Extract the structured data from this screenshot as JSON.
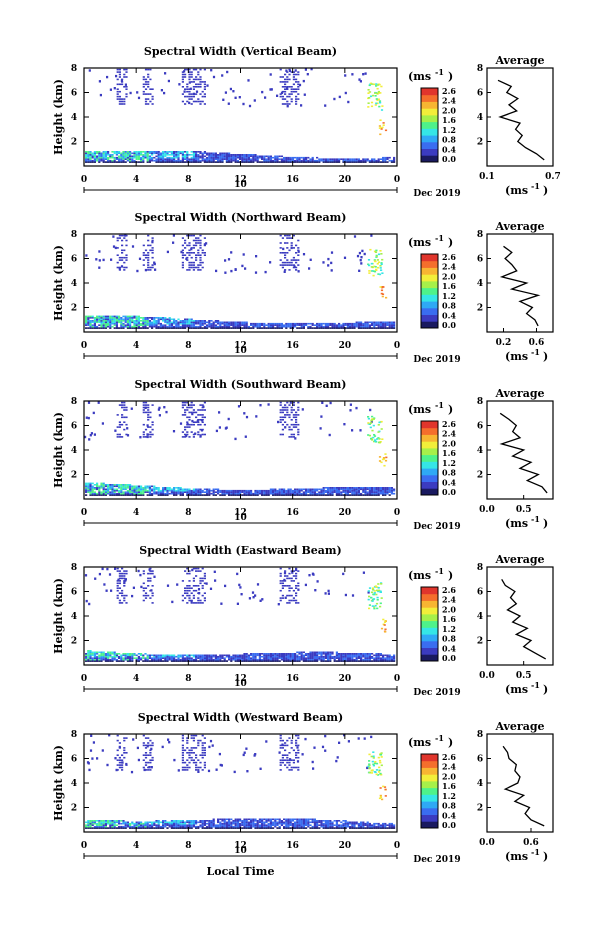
{
  "figure": {
    "xlabel": "Local Time",
    "date_label": "Dec 2019",
    "day_label": "10",
    "colorbar_unit": "(ms",
    "colorbar_unit_sup": "-1",
    "colorbar_unit_close": ")",
    "avg_title": "Average",
    "avg_unit": "(ms",
    "avg_unit_sup": "-1",
    "avg_unit_close": ")"
  },
  "colorbar_ticks": [
    "2.6",
    "2.4",
    "2.0",
    "1.6",
    "1.2",
    "0.8",
    "0.4",
    "0.0"
  ],
  "colormap": [
    "#1a1a60",
    "#3b3bc0",
    "#3a6df0",
    "#2fa9f5",
    "#35e6e6",
    "#4ef28a",
    "#a6f04a",
    "#f2ee3a",
    "#f7b532",
    "#f46e2c",
    "#e0352c"
  ],
  "chart_data": [
    {
      "type": "heatmap",
      "title": "Spectral Width (Vertical Beam)",
      "xlabel": "",
      "ylabel": "Height (km)",
      "xlim": [
        0,
        24
      ],
      "ylim": [
        0,
        8
      ],
      "xticks": [
        "0",
        "4",
        "8",
        "12",
        "16",
        "20",
        "0"
      ],
      "yticks": [
        "2",
        "4",
        "6",
        "8"
      ],
      "colorbar_range": [
        0.0,
        2.6
      ],
      "average_profile": {
        "title": "Average",
        "xticks": [
          "0.1",
          "0.7"
        ],
        "xlim": [
          0.1,
          0.7
        ],
        "yticks": [
          "2",
          "4",
          "6",
          "8"
        ],
        "heights": [
          0.5,
          1,
          1.5,
          2,
          2.5,
          3,
          3.5,
          4,
          4.5,
          5,
          5.5,
          6,
          6.5,
          7
        ],
        "values": [
          0.62,
          0.55,
          0.45,
          0.38,
          0.42,
          0.36,
          0.4,
          0.22,
          0.37,
          0.3,
          0.38,
          0.28,
          0.32,
          0.2
        ]
      }
    },
    {
      "type": "heatmap",
      "title": "Spectral Width (Northward Beam)",
      "xlabel": "",
      "ylabel": "Height (km)",
      "xlim": [
        0,
        24
      ],
      "ylim": [
        0,
        8
      ],
      "xticks": [
        "0",
        "4",
        "8",
        "12",
        "16",
        "20",
        "0"
      ],
      "yticks": [
        "2",
        "4",
        "6",
        "8"
      ],
      "colorbar_range": [
        0.0,
        2.6
      ],
      "average_profile": {
        "title": "Average",
        "xticks": [
          "0.2",
          "0.6"
        ],
        "xlim": [
          0.0,
          0.8
        ],
        "yticks": [
          "2",
          "4",
          "6",
          "8"
        ],
        "heights": [
          0.5,
          1,
          1.5,
          2,
          2.5,
          3,
          3.5,
          4,
          4.5,
          5,
          5.5,
          6,
          6.5,
          7
        ],
        "values": [
          0.62,
          0.58,
          0.48,
          0.55,
          0.4,
          0.62,
          0.3,
          0.48,
          0.18,
          0.36,
          0.3,
          0.22,
          0.3,
          0.2
        ]
      }
    },
    {
      "type": "heatmap",
      "title": "Spectral Width (Southward Beam)",
      "xlabel": "",
      "ylabel": "Height (km)",
      "xlim": [
        0,
        24
      ],
      "ylim": [
        0,
        8
      ],
      "xticks": [
        "0",
        "4",
        "8",
        "12",
        "16",
        "20",
        "0"
      ],
      "yticks": [
        "2",
        "4",
        "6",
        "8"
      ],
      "colorbar_range": [
        0.0,
        2.6
      ],
      "average_profile": {
        "title": "Average",
        "xticks": [
          "0.0",
          "0.5"
        ],
        "xlim": [
          0.0,
          0.9
        ],
        "yticks": [
          "2",
          "4",
          "6",
          "8"
        ],
        "heights": [
          0.5,
          1,
          1.5,
          2,
          2.5,
          3,
          3.5,
          4,
          4.5,
          5,
          5.5,
          6,
          6.5,
          7
        ],
        "values": [
          0.82,
          0.75,
          0.55,
          0.7,
          0.45,
          0.6,
          0.35,
          0.5,
          0.2,
          0.45,
          0.35,
          0.4,
          0.3,
          0.18
        ]
      }
    },
    {
      "type": "heatmap",
      "title": "Spectral Width (Eastward Beam)",
      "xlabel": "",
      "ylabel": "Height (km)",
      "xlim": [
        0,
        24
      ],
      "ylim": [
        0,
        8
      ],
      "xticks": [
        "0",
        "4",
        "8",
        "12",
        "16",
        "20",
        "0"
      ],
      "yticks": [
        "2",
        "4",
        "6",
        "8"
      ],
      "colorbar_range": [
        0.0,
        2.6
      ],
      "average_profile": {
        "title": "Average",
        "xticks": [
          "0.0",
          "0.5"
        ],
        "xlim": [
          0.0,
          0.9
        ],
        "yticks": [
          "2",
          "4",
          "6",
          "8"
        ],
        "heights": [
          0.5,
          1,
          1.5,
          2,
          2.5,
          3,
          3.5,
          4,
          4.5,
          5,
          5.5,
          6,
          6.5,
          7
        ],
        "values": [
          0.8,
          0.65,
          0.5,
          0.6,
          0.4,
          0.55,
          0.35,
          0.45,
          0.28,
          0.4,
          0.32,
          0.38,
          0.25,
          0.2
        ]
      }
    },
    {
      "type": "heatmap",
      "title": "Spectral Width (Westward Beam)",
      "xlabel": "Local Time",
      "ylabel": "Height (km)",
      "xlim": [
        0,
        24
      ],
      "ylim": [
        0,
        8
      ],
      "xticks": [
        "0",
        "4",
        "8",
        "12",
        "16",
        "20",
        "0"
      ],
      "yticks": [
        "2",
        "4",
        "6",
        "8"
      ],
      "colorbar_range": [
        0.0,
        2.6
      ],
      "average_profile": {
        "title": "Average",
        "xticks": [
          "0.0",
          "0.6"
        ],
        "xlim": [
          0.0,
          0.9
        ],
        "yticks": [
          "2",
          "4",
          "6",
          "8"
        ],
        "heights": [
          0.5,
          1,
          1.5,
          2,
          2.5,
          3,
          3.5,
          4,
          4.5,
          5,
          5.5,
          6,
          6.5,
          7
        ],
        "values": [
          0.78,
          0.6,
          0.52,
          0.58,
          0.38,
          0.5,
          0.25,
          0.42,
          0.45,
          0.38,
          0.4,
          0.3,
          0.28,
          0.22
        ]
      }
    }
  ]
}
